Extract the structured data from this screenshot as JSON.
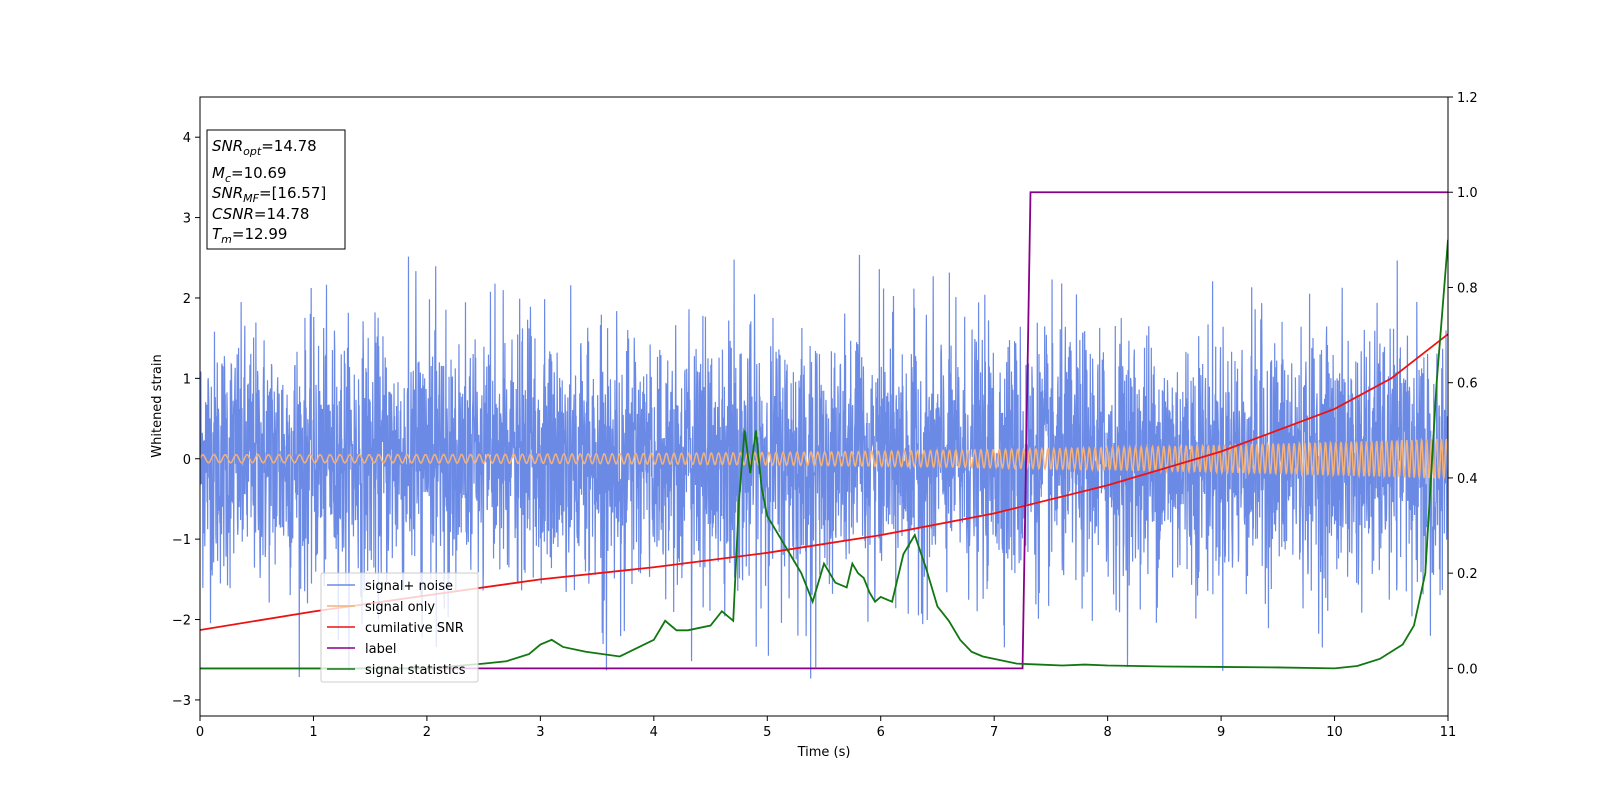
{
  "chart_data": {
    "type": "line",
    "xlabel": "Time (s)",
    "ylabel": "Whitened strain",
    "xlim": [
      0,
      11
    ],
    "ylim": [
      -3.2,
      4.5
    ],
    "y2lim": [
      -0.1,
      1.2
    ],
    "xticks": [
      "0",
      "1",
      "2",
      "3",
      "4",
      "5",
      "6",
      "7",
      "8",
      "9",
      "10",
      "11"
    ],
    "yticks": [
      "−3",
      "−2",
      "−1",
      "0",
      "1",
      "2",
      "3",
      "4"
    ],
    "y2ticks": [
      "0.0",
      "0.2",
      "0.4",
      "0.6",
      "0.8",
      "1.0",
      "1.2"
    ],
    "grid": false,
    "legend_position": "lower-left",
    "colors": {
      "signal_noise": "#6b8ae6",
      "signal_only": "#f4b27a",
      "cumulative_snr": "#ee1111",
      "label": "#880088",
      "signal_statistics": "#117711"
    },
    "annotation": {
      "snr_opt": {
        "main": "SNR",
        "sub": "opt",
        "value": "=14.78"
      },
      "mc": {
        "main": "M",
        "sub": "c",
        "value": "=10.69"
      },
      "snr_mf": {
        "main": "SNR",
        "sub": "MF",
        "value": "=[16.57]"
      },
      "csnr": {
        "main": "CSNR",
        "value": "=14.78"
      },
      "tm": {
        "main": "T",
        "sub": "m",
        "value": "=12.99"
      }
    },
    "series": [
      {
        "name": "signal+ noise",
        "axis": "left",
        "description_type": "noise",
        "x_range": [
          0,
          11
        ],
        "mean": 0.0,
        "peak_min": -2.9,
        "peak_max": 2.55
      },
      {
        "name": "signal only",
        "axis": "left",
        "description_type": "chirp",
        "x_range": [
          0,
          11
        ],
        "amplitude_start": 0.05,
        "amplitude_end": 0.25
      },
      {
        "name": "cumilative SNR",
        "axis": "left",
        "x": [
          0,
          1,
          2,
          3,
          4,
          5,
          6,
          7,
          8,
          9,
          10,
          10.5,
          11
        ],
        "y": [
          -2.13,
          -1.9,
          -1.7,
          -1.5,
          -1.35,
          -1.17,
          -0.95,
          -0.68,
          -0.33,
          0.09,
          0.62,
          1.0,
          1.55
        ]
      },
      {
        "name": "label",
        "axis": "right",
        "x": [
          0,
          7.25,
          7.32,
          11
        ],
        "y": [
          0.0,
          0.0,
          1.0,
          1.0
        ]
      },
      {
        "name": "signal statistics",
        "axis": "right",
        "x": [
          0,
          0.5,
          1,
          1.5,
          2,
          2.5,
          2.7,
          2.9,
          3.0,
          3.1,
          3.2,
          3.4,
          3.7,
          4.0,
          4.1,
          4.2,
          4.3,
          4.5,
          4.6,
          4.7,
          4.75,
          4.8,
          4.85,
          4.9,
          4.95,
          5.0,
          5.05,
          5.2,
          5.3,
          5.4,
          5.5,
          5.6,
          5.7,
          5.75,
          5.8,
          5.85,
          5.9,
          5.95,
          6.0,
          6.1,
          6.2,
          6.3,
          6.4,
          6.5,
          6.6,
          6.7,
          6.8,
          6.9,
          7.0,
          7.2,
          7.4,
          7.6,
          7.8,
          8.0,
          8.5,
          9.0,
          9.5,
          10.0,
          10.2,
          10.4,
          10.6,
          10.7,
          10.8,
          10.9,
          11.0
        ],
        "y": [
          0.0,
          0.0,
          0.0,
          0.0,
          0.0,
          0.01,
          0.015,
          0.03,
          0.05,
          0.06,
          0.045,
          0.035,
          0.025,
          0.06,
          0.1,
          0.08,
          0.08,
          0.09,
          0.12,
          0.1,
          0.35,
          0.5,
          0.41,
          0.5,
          0.38,
          0.32,
          0.3,
          0.24,
          0.2,
          0.14,
          0.22,
          0.18,
          0.17,
          0.22,
          0.2,
          0.19,
          0.16,
          0.14,
          0.15,
          0.14,
          0.24,
          0.28,
          0.21,
          0.13,
          0.1,
          0.06,
          0.035,
          0.025,
          0.02,
          0.01,
          0.008,
          0.006,
          0.008,
          0.006,
          0.004,
          0.003,
          0.002,
          0.0,
          0.005,
          0.02,
          0.05,
          0.09,
          0.2,
          0.6,
          0.9
        ]
      }
    ]
  }
}
